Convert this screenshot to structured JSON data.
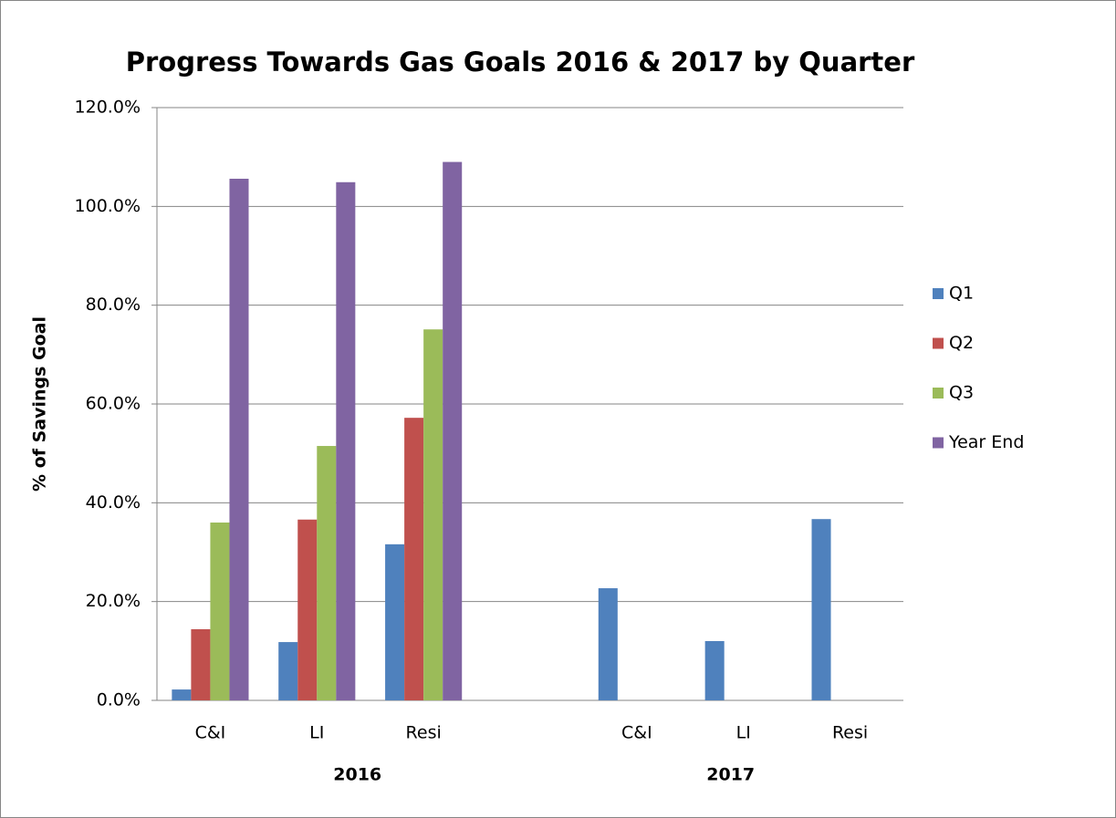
{
  "chart_data": {
    "type": "bar",
    "title": "Progress Towards Gas Goals 2016 & 2017 by Quarter",
    "y_label": "% of Savings Goal",
    "categories": [
      "C&I",
      "LI",
      "Resi",
      null,
      "C&I",
      "LI",
      "Resi"
    ],
    "groups": [
      {
        "name": "2016",
        "size": 4
      },
      {
        "name": "2017",
        "size": 3
      }
    ],
    "series": [
      {
        "name": "Q1",
        "color": "#4f81bd",
        "values": [
          2.2,
          11.8,
          31.6,
          null,
          22.7,
          12.0,
          36.7
        ]
      },
      {
        "name": "Q2",
        "color": "#c0504d",
        "values": [
          14.4,
          36.6,
          57.2,
          null,
          null,
          null,
          null
        ]
      },
      {
        "name": "Q3",
        "color": "#9bbb59",
        "values": [
          36.0,
          51.5,
          75.1,
          null,
          null,
          null,
          null
        ]
      },
      {
        "name": "Year End",
        "color": "#8064a2",
        "values": [
          105.6,
          104.9,
          109.0,
          null,
          null,
          null,
          null
        ]
      }
    ],
    "ylim": [
      0,
      120
    ],
    "yticks": [
      {
        "value": 0,
        "label": "0.0%"
      },
      {
        "value": 20,
        "label": "20.0%"
      },
      {
        "value": 40,
        "label": "40.0%"
      },
      {
        "value": 60,
        "label": "60.0%"
      },
      {
        "value": 80,
        "label": "80.0%"
      },
      {
        "value": 100,
        "label": "100.0%"
      },
      {
        "value": 120,
        "label": "120.0%"
      }
    ],
    "grid": true,
    "legend": "right"
  }
}
